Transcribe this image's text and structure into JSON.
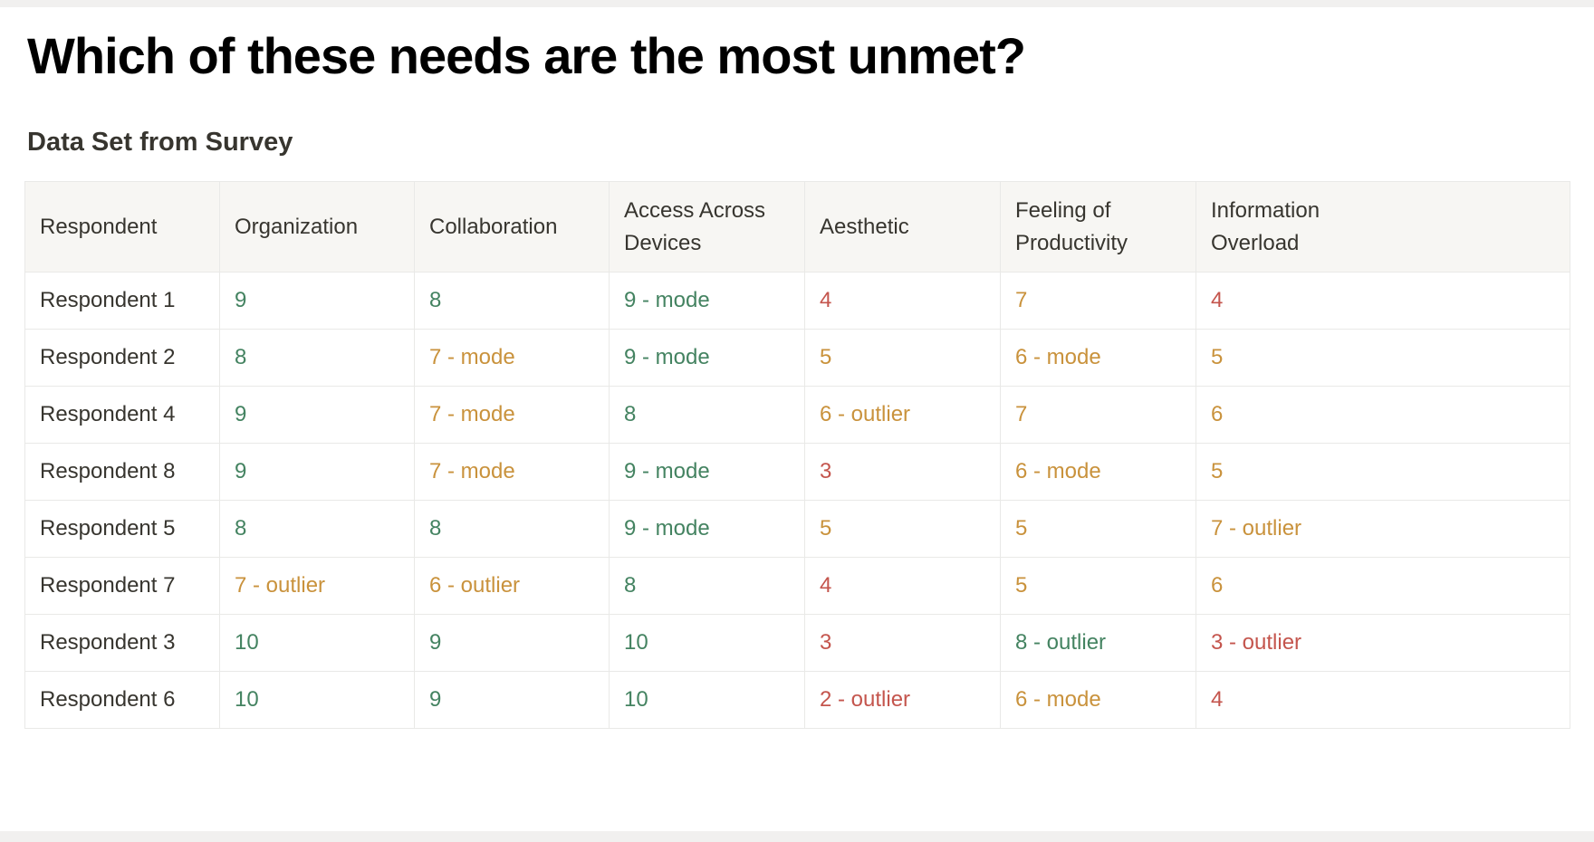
{
  "page": {
    "title": "Which of these needs are the most unmet?",
    "subtitle": "Data Set from Survey"
  },
  "colors": {
    "green": "#448361",
    "gold": "#c9923c",
    "red": "#c4554d"
  },
  "table": {
    "columns": [
      "Respondent",
      "Organization",
      "Collaboration",
      "Access Across Devices",
      "Aesthetic",
      "Feeling of Productivity",
      "Information Overload"
    ],
    "rows": [
      {
        "respondent": "Respondent 1",
        "cells": [
          {
            "text": "9",
            "color": "green"
          },
          {
            "text": "8",
            "color": "green"
          },
          {
            "text": "9 - mode",
            "color": "green"
          },
          {
            "text": "4",
            "color": "red"
          },
          {
            "text": "7",
            "color": "gold"
          },
          {
            "text": "4",
            "color": "red"
          }
        ]
      },
      {
        "respondent": "Respondent 2",
        "cells": [
          {
            "text": "8",
            "color": "green"
          },
          {
            "text": "7 - mode",
            "color": "gold"
          },
          {
            "text": "9 - mode",
            "color": "green"
          },
          {
            "text": "5",
            "color": "gold"
          },
          {
            "text": "6 - mode",
            "color": "gold"
          },
          {
            "text": "5",
            "color": "gold"
          }
        ]
      },
      {
        "respondent": "Respondent 4",
        "cells": [
          {
            "text": "9",
            "color": "green"
          },
          {
            "text": "7 - mode",
            "color": "gold"
          },
          {
            "text": "8",
            "color": "green"
          },
          {
            "text": "6 - outlier",
            "color": "gold"
          },
          {
            "text": "7",
            "color": "gold"
          },
          {
            "text": "6",
            "color": "gold"
          }
        ]
      },
      {
        "respondent": "Respondent 8",
        "cells": [
          {
            "text": "9",
            "color": "green"
          },
          {
            "text": "7 - mode",
            "color": "gold"
          },
          {
            "text": "9 - mode",
            "color": "green"
          },
          {
            "text": "3",
            "color": "red"
          },
          {
            "text": "6 - mode",
            "color": "gold"
          },
          {
            "text": "5",
            "color": "gold"
          }
        ]
      },
      {
        "respondent": "Respondent 5",
        "cells": [
          {
            "text": "8",
            "color": "green"
          },
          {
            "text": "8",
            "color": "green"
          },
          {
            "text": "9 - mode",
            "color": "green"
          },
          {
            "text": "5",
            "color": "gold"
          },
          {
            "text": "5",
            "color": "gold"
          },
          {
            "text": "7 - outlier",
            "color": "gold"
          }
        ]
      },
      {
        "respondent": "Respondent 7",
        "cells": [
          {
            "text": "7 - outlier",
            "color": "gold"
          },
          {
            "text": "6 - outlier",
            "color": "gold"
          },
          {
            "text": "8",
            "color": "green"
          },
          {
            "text": "4",
            "color": "red"
          },
          {
            "text": "5",
            "color": "gold"
          },
          {
            "text": "6",
            "color": "gold"
          }
        ]
      },
      {
        "respondent": "Respondent 3",
        "cells": [
          {
            "text": "10",
            "color": "green"
          },
          {
            "text": "9",
            "color": "green"
          },
          {
            "text": "10",
            "color": "green"
          },
          {
            "text": "3",
            "color": "red"
          },
          {
            "text": "8 - outlier",
            "color": "green"
          },
          {
            "text": "3 - outlier",
            "color": "red"
          }
        ]
      },
      {
        "respondent": "Respondent 6",
        "cells": [
          {
            "text": "10",
            "color": "green"
          },
          {
            "text": "9",
            "color": "green"
          },
          {
            "text": "10",
            "color": "green"
          },
          {
            "text": "2 - outlier",
            "color": "red"
          },
          {
            "text": "6 - mode",
            "color": "gold"
          },
          {
            "text": "4",
            "color": "red"
          }
        ]
      }
    ]
  }
}
